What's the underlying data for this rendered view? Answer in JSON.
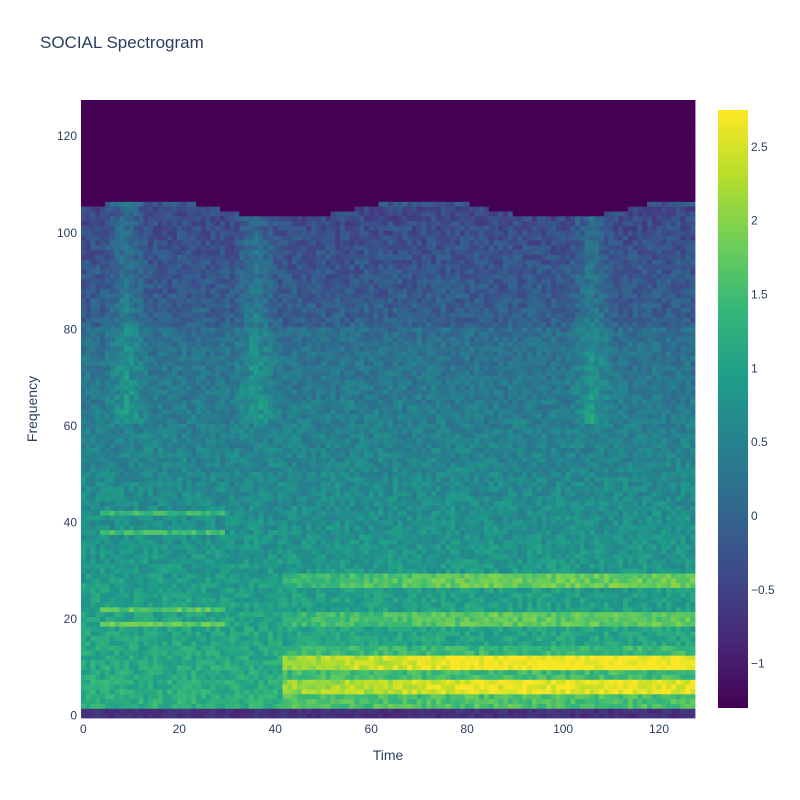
{
  "chart_data": {
    "type": "heatmap",
    "title": "SOCIAL Spectrogram",
    "xlabel": "Time",
    "ylabel": "Frequency",
    "x_range": [
      0,
      127
    ],
    "y_range": [
      0,
      127
    ],
    "x_ticks": [
      0,
      20,
      40,
      60,
      80,
      100,
      120
    ],
    "y_ticks": [
      0,
      20,
      40,
      60,
      80,
      100,
      120
    ],
    "colorscale": "Viridis",
    "colorbar": {
      "range": [
        -1.3,
        2.75
      ],
      "ticks": [
        -1,
        -0.5,
        0,
        0.5,
        1,
        1.5,
        2,
        2.5
      ],
      "tick_labels": [
        "−1",
        "−0.5",
        "0",
        "0.5",
        "1",
        "1.5",
        "2",
        "2.5"
      ]
    },
    "description_of_structure": {
      "silent_band_above_frequency": 105,
      "strong_harmonics_frequency": [
        11,
        6,
        28,
        20
      ],
      "strong_harmonics_time_start": 42,
      "early_harmonics_frequency": [
        19,
        38,
        42,
        22
      ],
      "vertical_bursts_time": [
        9,
        36,
        106
      ]
    },
    "colors": {
      "viridis": [
        "#440154",
        "#482878",
        "#3e4989",
        "#31688e",
        "#26828e",
        "#1f9e89",
        "#35b779",
        "#6ece58",
        "#b5de2b",
        "#fde725"
      ]
    }
  }
}
